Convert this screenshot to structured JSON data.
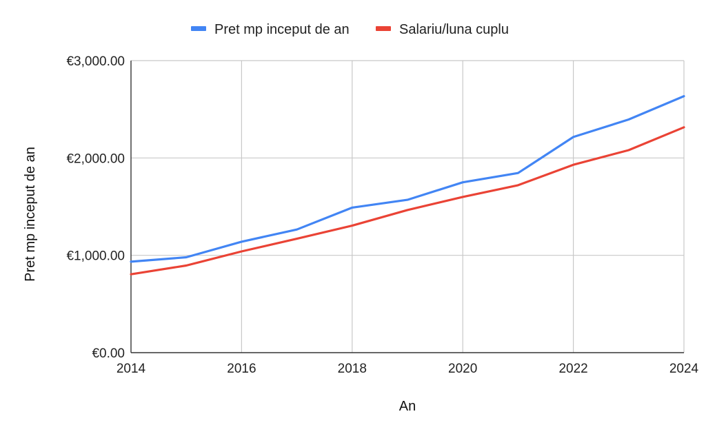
{
  "chart_data": {
    "type": "line",
    "title": "",
    "xlabel": "An",
    "ylabel": "Pret mp inceput de an",
    "x": [
      2014,
      2015,
      2016,
      2017,
      2018,
      2019,
      2020,
      2021,
      2022,
      2023,
      2024
    ],
    "xticks": [
      "2014",
      "2016",
      "2018",
      "2020",
      "2022",
      "2024"
    ],
    "xlim": [
      2014,
      2024
    ],
    "ylim": [
      0,
      3000
    ],
    "yticks": [
      "€0.00",
      "€1,000.00",
      "€2,000.00",
      "€3,000.00"
    ],
    "grid": true,
    "legend_position": "top",
    "series": [
      {
        "name": "Pret mp inceput de an",
        "color": "#4285f4",
        "values": [
          935,
          980,
          1140,
          1265,
          1490,
          1570,
          1750,
          1845,
          2215,
          2395,
          2635
        ]
      },
      {
        "name": "Salariu/luna cuplu",
        "color": "#ea4335",
        "values": [
          805,
          895,
          1040,
          1170,
          1305,
          1465,
          1600,
          1720,
          1930,
          2080,
          2315
        ]
      }
    ]
  }
}
